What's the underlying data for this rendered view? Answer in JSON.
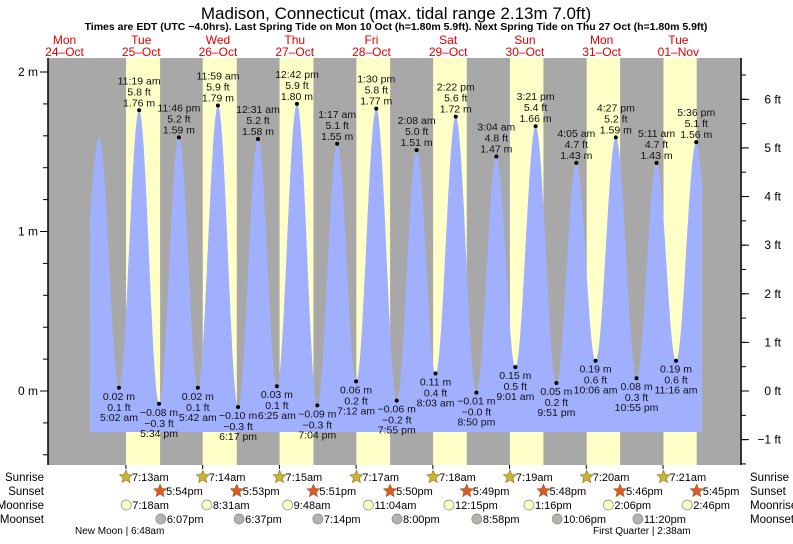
{
  "chart_data": {
    "type": "area",
    "title": "Madison, Connecticut (max. tidal range 2.13m 7.0ft)",
    "subtitle": "Times are EDT (UTC −4.0hrs). Last Spring Tide on Mon 10 Oct (h=1.80m 5.9ft). Next Spring Tide on Thu 27 Oct (h=1.80m 5.9ft)",
    "ylim_m": [
      -0.46,
      2.09
    ],
    "y_left_ticks": [
      {
        "v": 2,
        "label": "2 m"
      },
      {
        "v": 1,
        "label": "1 m"
      },
      {
        "v": 0,
        "label": "0 m"
      }
    ],
    "y_right_ticks": [
      {
        "v": 6,
        "label": "6 ft"
      },
      {
        "v": 5,
        "label": "5 ft"
      },
      {
        "v": 4,
        "label": "4 ft"
      },
      {
        "v": 3,
        "label": "3 ft"
      },
      {
        "v": 2,
        "label": "2 ft"
      },
      {
        "v": 1,
        "label": "1 ft"
      },
      {
        "v": 0,
        "label": "0 ft"
      },
      {
        "v": -1,
        "label": "−1 ft"
      }
    ],
    "days": [
      {
        "dow": "Mon",
        "date": "24–Oct"
      },
      {
        "dow": "Tue",
        "date": "25–Oct"
      },
      {
        "dow": "Wed",
        "date": "26–Oct"
      },
      {
        "dow": "Thu",
        "date": "27–Oct"
      },
      {
        "dow": "Fri",
        "date": "28–Oct"
      },
      {
        "dow": "Sat",
        "date": "29–Oct"
      },
      {
        "dow": "Sun",
        "date": "30–Oct"
      },
      {
        "dow": "Mon",
        "date": "31–Oct"
      },
      {
        "dow": "Tue",
        "date": "01–Nov"
      }
    ],
    "curve_start_high": {
      "day": 0,
      "hour": 22.8,
      "m": 1.59
    },
    "tides": [
      {
        "day": 1,
        "type": "low",
        "time": "5:02 am",
        "ft": "0.1 ft",
        "m_label": "0.02 m",
        "m": 0.02
      },
      {
        "day": 1,
        "type": "high",
        "time": "11:19 am",
        "ft": "5.8 ft",
        "m_label": "1.76 m",
        "m": 1.76
      },
      {
        "day": 1,
        "type": "low",
        "time": "5:34 pm",
        "ft": "−0.3 ft",
        "m_label": "−0.08 m",
        "m": -0.08
      },
      {
        "day": 1,
        "type": "high",
        "time": "11:46 pm",
        "ft": "5.2 ft",
        "m_label": "1.59 m",
        "m": 1.59
      },
      {
        "day": 2,
        "type": "low",
        "time": "5:42 am",
        "ft": "0.1 ft",
        "m_label": "0.02 m",
        "m": 0.02
      },
      {
        "day": 2,
        "type": "high",
        "time": "11:59 am",
        "ft": "5.9 ft",
        "m_label": "1.79 m",
        "m": 1.79
      },
      {
        "day": 2,
        "type": "low",
        "time": "6:17 pm",
        "ft": "−0.3 ft",
        "m_label": "−0.10 m",
        "m": -0.1
      },
      {
        "day": 3,
        "type": "high",
        "time": "12:31 am",
        "ft": "5.2 ft",
        "m_label": "1.58 m",
        "m": 1.58
      },
      {
        "day": 3,
        "type": "low",
        "time": "6:25 am",
        "ft": "0.1 ft",
        "m_label": "0.03 m",
        "m": 0.03
      },
      {
        "day": 3,
        "type": "high",
        "time": "12:42 pm",
        "ft": "5.9 ft",
        "m_label": "1.80 m",
        "m": 1.8
      },
      {
        "day": 3,
        "type": "low",
        "time": "7:04 pm",
        "ft": "−0.3 ft",
        "m_label": "−0.09 m",
        "m": -0.09
      },
      {
        "day": 4,
        "type": "high",
        "time": "1:17 am",
        "ft": "5.1 ft",
        "m_label": "1.55 m",
        "m": 1.55
      },
      {
        "day": 4,
        "type": "low",
        "time": "7:12 am",
        "ft": "0.2 ft",
        "m_label": "0.06 m",
        "m": 0.06
      },
      {
        "day": 4,
        "type": "high",
        "time": "1:30 pm",
        "ft": "5.8 ft",
        "m_label": "1.77 m",
        "m": 1.77
      },
      {
        "day": 4,
        "type": "low",
        "time": "7:55 pm",
        "ft": "−0.2 ft",
        "m_label": "−0.06 m",
        "m": -0.06
      },
      {
        "day": 5,
        "type": "high",
        "time": "2:08 am",
        "ft": "5.0 ft",
        "m_label": "1.51 m",
        "m": 1.51
      },
      {
        "day": 5,
        "type": "low",
        "time": "8:03 am",
        "ft": "0.4 ft",
        "m_label": "0.11 m",
        "m": 0.11
      },
      {
        "day": 5,
        "type": "high",
        "time": "2:22 pm",
        "ft": "5.6 ft",
        "m_label": "1.72 m",
        "m": 1.72
      },
      {
        "day": 5,
        "type": "low",
        "time": "8:50 pm",
        "ft": "−0.0 ft",
        "m_label": "−0.01 m",
        "m": -0.01
      },
      {
        "day": 6,
        "type": "high",
        "time": "3:04 am",
        "ft": "4.8 ft",
        "m_label": "1.47 m",
        "m": 1.47
      },
      {
        "day": 6,
        "type": "low",
        "time": "9:01 am",
        "ft": "0.5 ft",
        "m_label": "0.15 m",
        "m": 0.15
      },
      {
        "day": 6,
        "type": "high",
        "time": "3:21 pm",
        "ft": "5.4 ft",
        "m_label": "1.66 m",
        "m": 1.66
      },
      {
        "day": 6,
        "type": "low",
        "time": "9:51 pm",
        "ft": "0.2 ft",
        "m_label": "0.05 m",
        "m": 0.05
      },
      {
        "day": 7,
        "type": "high",
        "time": "4:05 am",
        "ft": "4.7 ft",
        "m_label": "1.43 m",
        "m": 1.43
      },
      {
        "day": 7,
        "type": "low",
        "time": "10:06 am",
        "ft": "0.6 ft",
        "m_label": "0.19 m",
        "m": 0.19
      },
      {
        "day": 7,
        "type": "high",
        "time": "4:27 pm",
        "ft": "5.2 ft",
        "m_label": "1.59 m",
        "m": 1.59
      },
      {
        "day": 7,
        "type": "low",
        "time": "10:55 pm",
        "ft": "0.3 ft",
        "m_label": "0.08 m",
        "m": 0.08
      },
      {
        "day": 8,
        "type": "high",
        "time": "5:11 am",
        "ft": "4.7 ft",
        "m_label": "1.43 m",
        "m": 1.43
      },
      {
        "day": 8,
        "type": "low",
        "time": "11:16 am",
        "ft": "0.6 ft",
        "m_label": "0.19 m",
        "m": 0.19
      },
      {
        "day": 8,
        "type": "high",
        "time": "5:36 pm",
        "ft": "5.1 ft",
        "m_label": "1.56 m",
        "m": 1.56
      }
    ],
    "row_labels": {
      "sunrise": "Sunrise",
      "sunset": "Sunset",
      "moonrise": "Moonrise",
      "moonset": "Moonset"
    },
    "sunrise": [
      {
        "day": 1,
        "time": "7:13am"
      },
      {
        "day": 2,
        "time": "7:14am"
      },
      {
        "day": 3,
        "time": "7:15am"
      },
      {
        "day": 4,
        "time": "7:17am"
      },
      {
        "day": 5,
        "time": "7:18am"
      },
      {
        "day": 6,
        "time": "7:19am"
      },
      {
        "day": 7,
        "time": "7:20am"
      },
      {
        "day": 8,
        "time": "7:21am"
      }
    ],
    "sunset": [
      {
        "day": 1,
        "time": "5:54pm"
      },
      {
        "day": 2,
        "time": "5:53pm"
      },
      {
        "day": 3,
        "time": "5:51pm"
      },
      {
        "day": 4,
        "time": "5:50pm"
      },
      {
        "day": 5,
        "time": "5:49pm"
      },
      {
        "day": 6,
        "time": "5:48pm"
      },
      {
        "day": 7,
        "time": "5:46pm"
      },
      {
        "day": 8,
        "time": "5:45pm"
      }
    ],
    "moonrise": [
      {
        "day": 1,
        "time": "7:18am"
      },
      {
        "day": 2,
        "time": "8:31am"
      },
      {
        "day": 3,
        "time": "9:48am"
      },
      {
        "day": 4,
        "time": "11:04am"
      },
      {
        "day": 5,
        "time": "12:15pm"
      },
      {
        "day": 6,
        "time": "1:16pm"
      },
      {
        "day": 7,
        "time": "2:06pm"
      },
      {
        "day": 8,
        "time": "2:46pm"
      }
    ],
    "moonset": [
      {
        "day": 1,
        "time": "6:07pm"
      },
      {
        "day": 2,
        "time": "6:37pm"
      },
      {
        "day": 3,
        "time": "7:14pm"
      },
      {
        "day": 4,
        "time": "8:00pm"
      },
      {
        "day": 5,
        "time": "8:58pm"
      },
      {
        "day": 6,
        "time": "10:06pm"
      },
      {
        "day": 7,
        "time": "11:20pm"
      }
    ],
    "moon_phases": [
      {
        "label": "New Moon | 6:48am",
        "day": 1
      },
      {
        "label": "First Quarter | 2:38am",
        "day": 8
      }
    ],
    "colors": {
      "title_day": "#e00000",
      "water": "#a0b0ff",
      "night": "#a8a8a8",
      "day": "#ffffc8",
      "sunrise": "#c8b432",
      "sunset": "#dc5a28",
      "moonrise": "#ffffc8",
      "moonset": "#b4b4a8"
    }
  }
}
